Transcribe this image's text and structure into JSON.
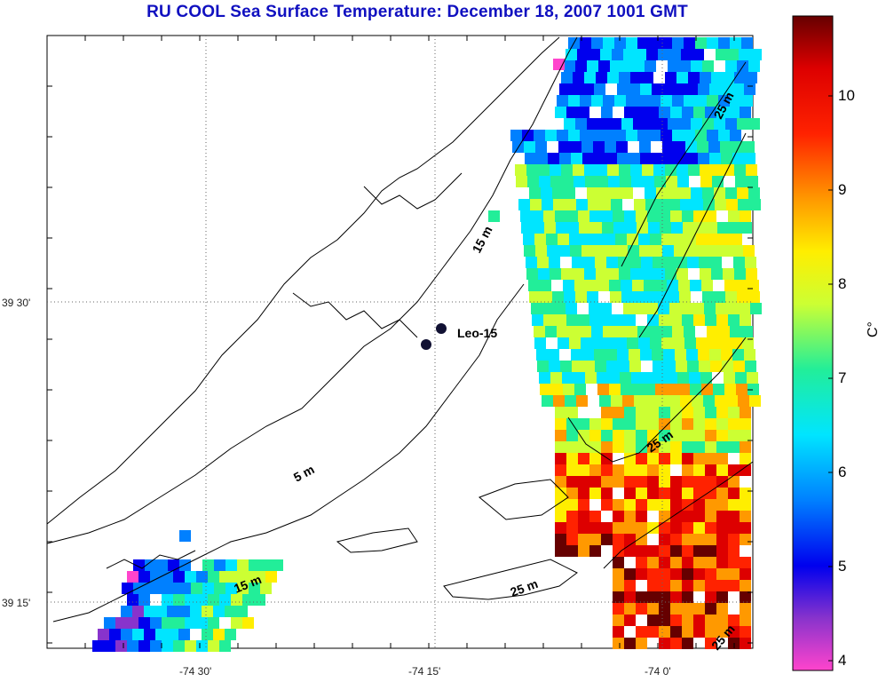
{
  "title": "RU COOL  Sea Surface Temperature:  December 18, 2007 1001 GMT",
  "map": {
    "lat_labels": [
      "39 30'",
      "39 15'"
    ],
    "lon_labels": [
      "-74 30'",
      "-74 15'",
      "-74 0'"
    ],
    "station_label": "Leo-15",
    "contours": [
      "15 m",
      "5 m",
      "25 m",
      "25 m",
      "25 m",
      "15 m",
      "25 m"
    ]
  },
  "colorbar": {
    "unit": "C°",
    "ticks": [
      "10",
      "9",
      "8",
      "7",
      "6",
      "5",
      "4"
    ],
    "min": 4,
    "max": 10.8,
    "colors": [
      "#ff44cc",
      "#8833cc",
      "#0000ee",
      "#0080ff",
      "#00e5ff",
      "#22ee99",
      "#ccff33",
      "#ffee00",
      "#ff9900",
      "#ff2200",
      "#dd0000",
      "#660000"
    ]
  }
}
